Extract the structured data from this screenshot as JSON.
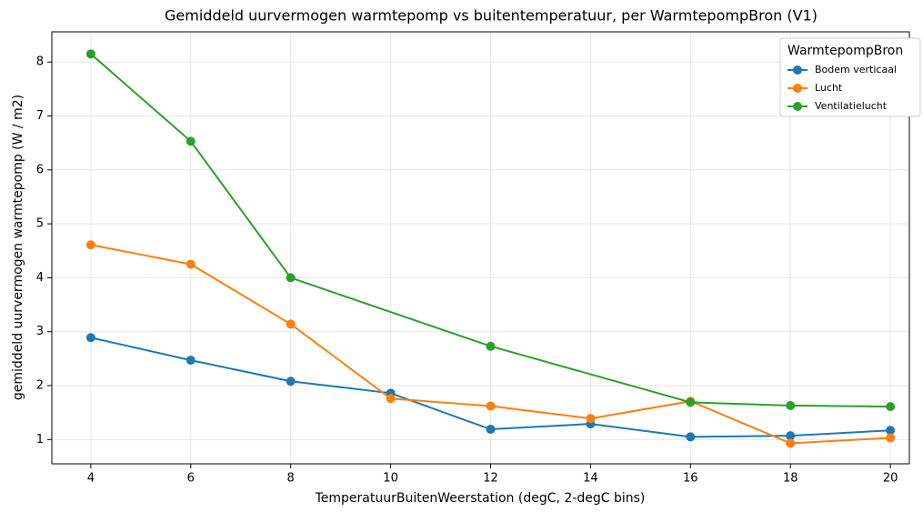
{
  "chart_data": {
    "type": "line",
    "title": "Gemiddeld uurvermogen warmtepomp vs buitentemperatuur, per WarmtepompBron (V1)",
    "x_label": "TemperatuurBuitenWeerstation (degC, 2-degC bins)",
    "y_label": "gemiddeld uurvermogen warmtepomp (W / m2)",
    "legend_title": "WarmtepompBron",
    "legend_position": "upper right",
    "grid": true,
    "xlim": [
      3.22,
      20.38
    ],
    "xticks": [
      4,
      6,
      8,
      10,
      12,
      14,
      16,
      18,
      20
    ],
    "ylim": [
      0.55,
      8.56
    ],
    "yticks": [
      1,
      2,
      3,
      4,
      5,
      6,
      7,
      8
    ],
    "series": [
      {
        "name": "Bodem verticaal",
        "color": "#1f77b4",
        "x": [
          4,
          6,
          8,
          10,
          12,
          14,
          16,
          18,
          20
        ],
        "values": [
          2.89,
          2.47,
          2.08,
          1.86,
          1.19,
          1.29,
          1.05,
          1.07,
          1.17
        ]
      },
      {
        "name": "Lucht",
        "color": "#ff7f0e",
        "x": [
          4,
          6,
          8,
          10,
          12,
          14,
          16,
          18,
          20
        ],
        "values": [
          4.61,
          4.25,
          3.14,
          1.76,
          1.62,
          1.39,
          1.71,
          0.93,
          1.03
        ]
      },
      {
        "name": "Ventilatielucht",
        "color": "#2ca02c",
        "x": [
          4,
          6,
          8,
          12,
          16,
          18,
          20
        ],
        "values": [
          8.15,
          6.53,
          4.0,
          2.73,
          1.69,
          1.63,
          1.61
        ]
      }
    ]
  }
}
